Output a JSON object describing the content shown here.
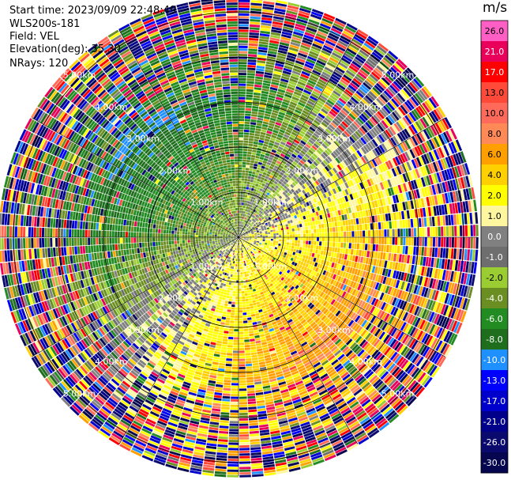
{
  "info": {
    "start_time": "Start time: 2023/09/09 22:48:49",
    "instrument": "WLS200s-181",
    "field": "Field: VEL",
    "elevation": "Elevation(deg): 35.30",
    "nrays": "NRays: 120"
  },
  "colorbar": {
    "unit": "m/s",
    "tick_labels": [
      "26.0",
      "21.0",
      "17.0",
      "13.0",
      "10.0",
      "8.0",
      "6.0",
      "4.0",
      "2.0",
      "1.0",
      "0.0",
      "-1.0",
      "-2.0",
      "-4.0",
      "-6.0",
      "-8.0",
      "-10.0",
      "-13.0",
      "-17.0",
      "-21.0",
      "-26.0",
      "-30.0"
    ],
    "colors": [
      "#ff5fc4",
      "#e8005a",
      "#ff0000",
      "#ff4a3a",
      "#ff6a5a",
      "#ff8a58",
      "#ffa000",
      "#ffd000",
      "#ffff00",
      "#fff7a0",
      "#808080",
      "#6e6e6e",
      "#9acd32",
      "#6b8e23",
      "#228b22",
      "#1e6e1e",
      "#1e90ff",
      "#0000ff",
      "#0000cd",
      "#00008b",
      "#0a0a6e",
      "#050550"
    ]
  },
  "chart_data": {
    "type": "ppi",
    "field": "VEL",
    "units": "m/s",
    "nrays": 120,
    "elevation_deg": 35.3,
    "range_ring_labels": [
      "1.00km",
      "2.00km",
      "3.00km",
      "4.00km",
      "5.00km"
    ],
    "range_rings_km": [
      1,
      2,
      3,
      4,
      5
    ],
    "max_range_km": 5.3,
    "value_min": -30.0,
    "value_max": 26.0,
    "pattern": {
      "near_sector_north_west": "green / grey (-1 to -8 m/s)",
      "near_sector_south_east": "yellow / orange (2 to 13 m/s)",
      "outer_rings": "mixed noise across full scale"
    }
  }
}
